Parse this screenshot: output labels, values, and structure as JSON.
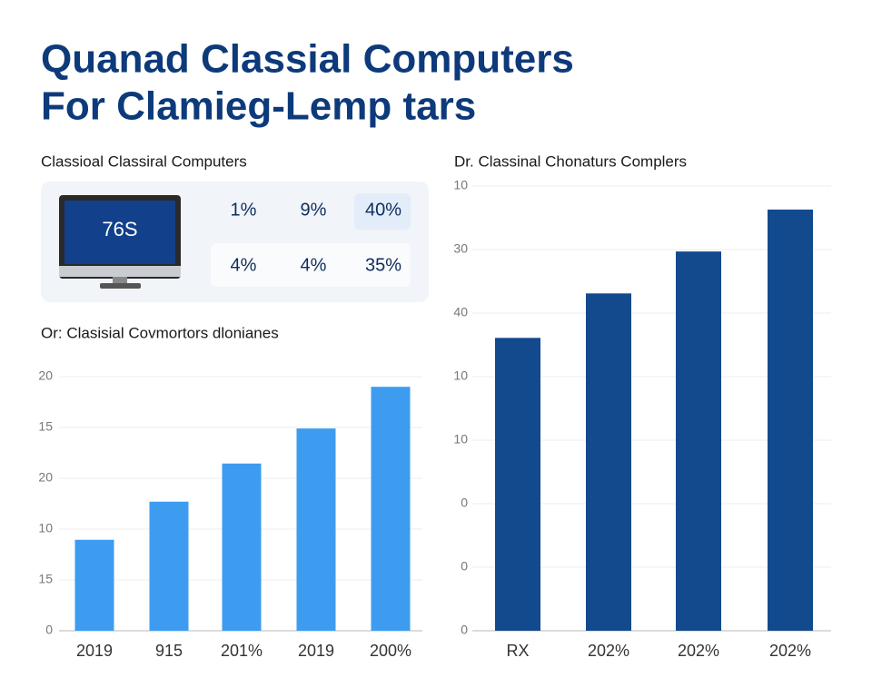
{
  "header": {
    "title_lines": [
      "Quanad Classial Computers",
      "For Clamieg-Lemp tars"
    ]
  },
  "panel": {
    "title": "Classioal Classiral Computers",
    "screen": "76S",
    "stats": [
      [
        "1%",
        "9%",
        "40%"
      ],
      [
        "4%",
        "4%",
        "35%"
      ]
    ]
  },
  "chart_data": [
    {
      "type": "bar",
      "title": "Or: Clasisial Covmortors dlonianes",
      "categories": [
        "2019",
        "915",
        "201%",
        "2019",
        "200%"
      ],
      "values": [
        1.79,
        2.54,
        3.29,
        3.98,
        4.8
      ],
      "color": "#3d9cf0",
      "ylim": [
        0,
        5
      ],
      "yticks": [
        {
          "value": 0,
          "label": "0"
        },
        {
          "value": 1,
          "label": "15"
        },
        {
          "value": 2,
          "label": "10"
        },
        {
          "value": 3,
          "label": "20"
        },
        {
          "value": 4,
          "label": "15"
        },
        {
          "value": 5,
          "label": "20"
        }
      ],
      "grid": true
    },
    {
      "type": "bar",
      "title": "Dr. Classinal Chonaturs Complers",
      "categories": [
        "RX",
        "202%",
        "202%",
        "202%"
      ],
      "values": [
        4.61,
        5.31,
        5.97,
        6.63
      ],
      "color": "#134a8e",
      "ylim": [
        0,
        7
      ],
      "yticks": [
        {
          "value": 0,
          "label": "0"
        },
        {
          "value": 1,
          "label": "0"
        },
        {
          "value": 2,
          "label": "0"
        },
        {
          "value": 3,
          "label": "10"
        },
        {
          "value": 4,
          "label": "10"
        },
        {
          "value": 5,
          "label": "40"
        },
        {
          "value": 6,
          "label": "30"
        },
        {
          "value": 7,
          "label": "10"
        }
      ],
      "grid": true
    }
  ]
}
